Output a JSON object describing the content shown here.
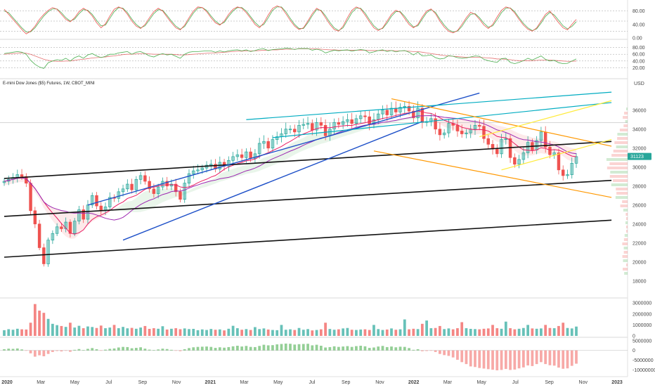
{
  "header": {
    "title": "E-mini Dow Jones ($5) Futures, 1W, CBOT_MINI",
    "currency": "USD",
    "last_price": "31123"
  },
  "colors": {
    "up": "#26a69a",
    "down": "#ef5350",
    "ma_fast": "#e91e63",
    "ma_slow": "#9c27b0",
    "channel_blue": "#1e50c8",
    "channel_cyan": "#00acc1",
    "channel_orange": "#ff9800",
    "channel_yellow": "#ffeb3b",
    "trend_black": "#111111",
    "stoch_k": "#ef5350",
    "stoch_d": "#4caf50",
    "rsi": "#4caf50",
    "rsi_ma": "#e57373",
    "price_badge": "#26a69a"
  },
  "axes": {
    "x_ticks": [
      "2020",
      "Mar",
      "May",
      "Jul",
      "Sep",
      "Nov",
      "2021",
      "Mar",
      "May",
      "Jul",
      "Sep",
      "Nov",
      "2022",
      "Mar",
      "May",
      "Jul",
      "Sep",
      "Nov",
      "2023"
    ],
    "price_ticks": [
      "36000",
      "34000",
      "32000",
      "30000",
      "28000",
      "26000",
      "24000",
      "22000",
      "20000",
      "18000"
    ],
    "stoch_ticks": [
      "80.00",
      "40.00",
      "0.00"
    ],
    "rsi_ticks": [
      "80.00",
      "60.00",
      "40.00",
      "20.00"
    ],
    "volume_ticks": [
      "3000000",
      "2000000",
      "1000000",
      "0"
    ],
    "macd_ticks": [
      "5000000",
      "0",
      "-5000000",
      "-10000000"
    ]
  },
  "chart_data": [
    {
      "type": "candlestick",
      "panel": "price",
      "x_start": "2019-12",
      "x_end": "2023-01",
      "ylim": [
        16500,
        38500
      ],
      "weekly_close": [
        28500,
        28700,
        28900,
        29200,
        29000,
        28300,
        25400,
        24000,
        21500,
        19800,
        22300,
        23000,
        23700,
        23500,
        24200,
        23000,
        24300,
        25500,
        24500,
        26000,
        27000,
        25900,
        25400,
        25800,
        26800,
        26700,
        27400,
        27700,
        28200,
        27600,
        28700,
        29100,
        28500,
        27700,
        27200,
        27900,
        28500,
        28000,
        28200,
        27400,
        26600,
        28300,
        29300,
        29600,
        29700,
        29900,
        30200,
        30300,
        29800,
        30500,
        30100,
        30700,
        31100,
        31300,
        31000,
        31600,
        30900,
        31400,
        32500,
        32700,
        32000,
        32900,
        33200,
        33500,
        34000,
        34000,
        33700,
        34400,
        34500,
        34600,
        33900,
        34700,
        34400,
        33300,
        34000,
        34700,
        34500,
        34800,
        35000,
        34600,
        35100,
        35400,
        35300,
        34500,
        35000,
        35600,
        36000,
        35500,
        36200,
        35800,
        36300,
        36400,
        35900,
        35200,
        36200,
        34700,
        34800,
        35100,
        34000,
        33400,
        33600,
        34600,
        34400,
        33800,
        33500,
        33600,
        34000,
        34400,
        34300,
        33000,
        32400,
        31900,
        31400,
        32900,
        33000,
        31000,
        30300,
        30800,
        31500,
        32600,
        31800,
        32800,
        33700,
        32100,
        31300,
        31500,
        29700,
        29100,
        29200,
        30400,
        31100
      ]
    },
    {
      "type": "bar",
      "panel": "volume",
      "ylim": [
        0,
        3200000
      ],
      "series": [
        {
          "values": [
            520000,
            610000,
            560000,
            650000,
            600000,
            580000,
            1200000,
            2900000,
            2300000,
            2100000,
            1550000,
            1100000,
            980000,
            900000,
            820000,
            1200000,
            760000,
            920000,
            700000,
            860000,
            810000,
            720000,
            940000,
            700000,
            760000,
            1000000,
            700000,
            820000,
            690000,
            730000,
            650000,
            760000,
            900000,
            640000,
            700000,
            650000,
            880000,
            580000,
            650000,
            700000,
            610000,
            680000,
            620000,
            640000,
            520000,
            590000,
            540000,
            630000,
            560000,
            590000,
            500000,
            650000,
            920000,
            700000,
            560000,
            620000,
            540000,
            800000,
            620000,
            680000,
            580000,
            540000,
            520000,
            1000000,
            560000,
            600000,
            540000,
            720000,
            560000,
            620000,
            500000,
            540000,
            600000,
            1200000,
            630000,
            560000,
            600000,
            680000,
            720000,
            560000,
            540000,
            580000,
            600000,
            540000,
            1000000,
            620000,
            540000,
            580000,
            680000,
            560000,
            600000,
            1500000,
            600000,
            650000,
            620000,
            1100000,
            1400000,
            700000,
            720000,
            900000,
            620000,
            680000,
            600000,
            700000,
            1250000,
            700000,
            640000,
            620000,
            600000,
            650000,
            680000,
            1000000,
            700000,
            650000,
            1300000,
            700000,
            600000,
            650000,
            720000,
            1000000,
            680000,
            650000,
            680000,
            1000000,
            720000,
            700000,
            900000,
            1200000,
            720000,
            680000,
            850000
          ]
        }
      ]
    },
    {
      "type": "bar",
      "panel": "macd",
      "ylim": [
        -12000000,
        6000000
      ],
      "series": [
        {
          "values": [
            600000,
            900000,
            800000,
            1000000,
            500000,
            -200000,
            -1500000,
            -3200000,
            -2500000,
            -3000000,
            -1800000,
            -800000,
            -300000,
            -500000,
            -200000,
            -700000,
            300000,
            700000,
            200000,
            800000,
            1200000,
            600000,
            -100000,
            400000,
            800000,
            1000000,
            1500000,
            1800000,
            1700000,
            1100000,
            1300000,
            1600000,
            900000,
            400000,
            200000,
            500000,
            900000,
            700000,
            300000,
            -200000,
            -400000,
            600000,
            1200000,
            1600000,
            1800000,
            1900000,
            2000000,
            1800000,
            1300000,
            1600000,
            1400000,
            1700000,
            2100000,
            2400000,
            2000000,
            2300000,
            1800000,
            1700000,
            2300000,
            2900000,
            2600000,
            2700000,
            3100000,
            3300000,
            3500000,
            3400000,
            3000000,
            3200000,
            3300000,
            3400000,
            2600000,
            2900000,
            2400000,
            1500000,
            1700000,
            2100000,
            1800000,
            2000000,
            2200000,
            1800000,
            2200000,
            2400000,
            2100000,
            1300000,
            1500000,
            2000000,
            2300000,
            1700000,
            2000000,
            1600000,
            1900000,
            1800000,
            1200000,
            300000,
            600000,
            -400000,
            -300000,
            -200000,
            -800000,
            -1800000,
            -2400000,
            -2800000,
            -3600000,
            -4800000,
            -6000000,
            -7000000,
            -8200000,
            -8500000,
            -9000000,
            -9300000,
            -9600000,
            -9900000,
            -10200000,
            -10000000,
            -9500000,
            -10000000,
            -9800000,
            -9200000,
            -8700000,
            -7700000,
            -8000000,
            -7000000,
            -6000000,
            -7000000,
            -7600000,
            -7800000,
            -8800000,
            -9400000,
            -9200000,
            -7900000,
            -6800000
          ]
        }
      ]
    },
    {
      "type": "line",
      "panel": "stochastic",
      "ylim": [
        0,
        100
      ],
      "series": [
        {
          "values": [
            85,
            70,
            55,
            40,
            25,
            12,
            20,
            35,
            55,
            70,
            82,
            90,
            85,
            70,
            55,
            48,
            60,
            78,
            88,
            80,
            65,
            45,
            30,
            42,
            65,
            85,
            92,
            86,
            70,
            50,
            35,
            28,
            40,
            60,
            78,
            88,
            80,
            62,
            45,
            30,
            24,
            38,
            60,
            80,
            92,
            90,
            78,
            60,
            45,
            38,
            50,
            70,
            85,
            92,
            88,
            75,
            58,
            40,
            30,
            45,
            68,
            88,
            95,
            90,
            72,
            52,
            35,
            25,
            30,
            50,
            72,
            88,
            80,
            60,
            40,
            25,
            20,
            35,
            60,
            82,
            92,
            86,
            68,
            48,
            30,
            22,
            30,
            50,
            70,
            82,
            76,
            58,
            40,
            30,
            40,
            62,
            80,
            86,
            72,
            50,
            32,
            20,
            15,
            22,
            40,
            60,
            76,
            70,
            55,
            38,
            28,
            40,
            62,
            82,
            92,
            88,
            74,
            55,
            38,
            26,
            20,
            30,
            50,
            70,
            80,
            62,
            45,
            30,
            24,
            40,
            55
          ]
        },
        {
          "values": [
            80,
            75,
            60,
            45,
            30,
            18,
            18,
            30,
            48,
            65,
            78,
            86,
            86,
            75,
            60,
            50,
            56,
            72,
            84,
            82,
            70,
            52,
            36,
            38,
            58,
            78,
            90,
            88,
            75,
            56,
            40,
            30,
            36,
            54,
            72,
            84,
            82,
            67,
            50,
            35,
            26,
            34,
            54,
            74,
            88,
            90,
            82,
            65,
            50,
            40,
            46,
            64,
            80,
            90,
            90,
            80,
            63,
            46,
            34,
            40,
            60,
            82,
            92,
            92,
            78,
            58,
            40,
            28,
            28,
            45,
            66,
            84,
            82,
            66,
            46,
            30,
            22,
            30,
            52,
            75,
            88,
            88,
            74,
            54,
            36,
            25,
            28,
            44,
            64,
            78,
            78,
            64,
            46,
            33,
            36,
            56,
            75,
            84,
            76,
            56,
            38,
            24,
            18,
            20,
            34,
            54,
            70,
            72,
            60,
            44,
            32,
            36,
            54,
            75,
            88,
            89,
            78,
            60,
            43,
            30,
            22,
            27,
            44,
            64,
            76,
            68,
            52,
            36,
            27,
            34,
            48
          ]
        }
      ]
    },
    {
      "type": "line",
      "panel": "rsi",
      "ylim": [
        0,
        100
      ],
      "series": [
        {
          "values": [
            62,
            64,
            66,
            68,
            66,
            60,
            42,
            30,
            22,
            18,
            35,
            40,
            44,
            42,
            48,
            40,
            50,
            55,
            48,
            58,
            62,
            55,
            50,
            54,
            60,
            60,
            64,
            66,
            68,
            60,
            66,
            68,
            62,
            55,
            52,
            58,
            62,
            58,
            60,
            54,
            48,
            60,
            66,
            68,
            68,
            69,
            70,
            70,
            66,
            70,
            67,
            70,
            72,
            73,
            70,
            73,
            68,
            71,
            75,
            76,
            71,
            74,
            75,
            76,
            78,
            77,
            74,
            77,
            77,
            77,
            72,
            75,
            72,
            64,
            68,
            72,
            70,
            72,
            73,
            69,
            72,
            74,
            72,
            64,
            67,
            71,
            73,
            68,
            71,
            67,
            70,
            71,
            66,
            58,
            66,
            55,
            56,
            58,
            50,
            46,
            48,
            56,
            54,
            50,
            48,
            49,
            52,
            55,
            54,
            45,
            41,
            38,
            36,
            47,
            48,
            36,
            32,
            36,
            41,
            48,
            43,
            49,
            55,
            45,
            40,
            42,
            35,
            32,
            33,
            40,
            46
          ]
        },
        {
          "values": [
            60,
            61,
            62,
            63,
            64,
            63,
            60,
            55,
            50,
            45,
            42,
            40,
            39,
            39,
            40,
            40,
            42,
            44,
            45,
            47,
            49,
            50,
            51,
            52,
            54,
            55,
            57,
            59,
            60,
            60,
            61,
            62,
            62,
            61,
            60,
            60,
            60,
            60,
            60,
            59,
            58,
            58,
            59,
            60,
            61,
            62,
            63,
            64,
            64,
            65,
            66,
            67,
            68,
            69,
            69,
            70,
            70,
            70,
            71,
            72,
            72,
            73,
            73,
            74,
            75,
            75,
            75,
            76,
            76,
            76,
            76,
            76,
            75,
            74,
            73,
            73,
            72,
            72,
            72,
            72,
            72,
            72,
            72,
            71,
            71,
            71,
            71,
            71,
            71,
            70,
            70,
            70,
            69,
            68,
            68,
            66,
            64,
            62,
            60,
            58,
            56,
            55,
            54,
            53,
            52,
            51,
            51,
            51,
            51,
            50,
            49,
            48,
            46,
            46,
            45,
            44,
            42,
            41,
            41,
            41,
            41,
            42,
            43,
            43,
            43,
            42,
            41,
            40,
            39,
            39,
            40
          ]
        }
      ]
    }
  ]
}
